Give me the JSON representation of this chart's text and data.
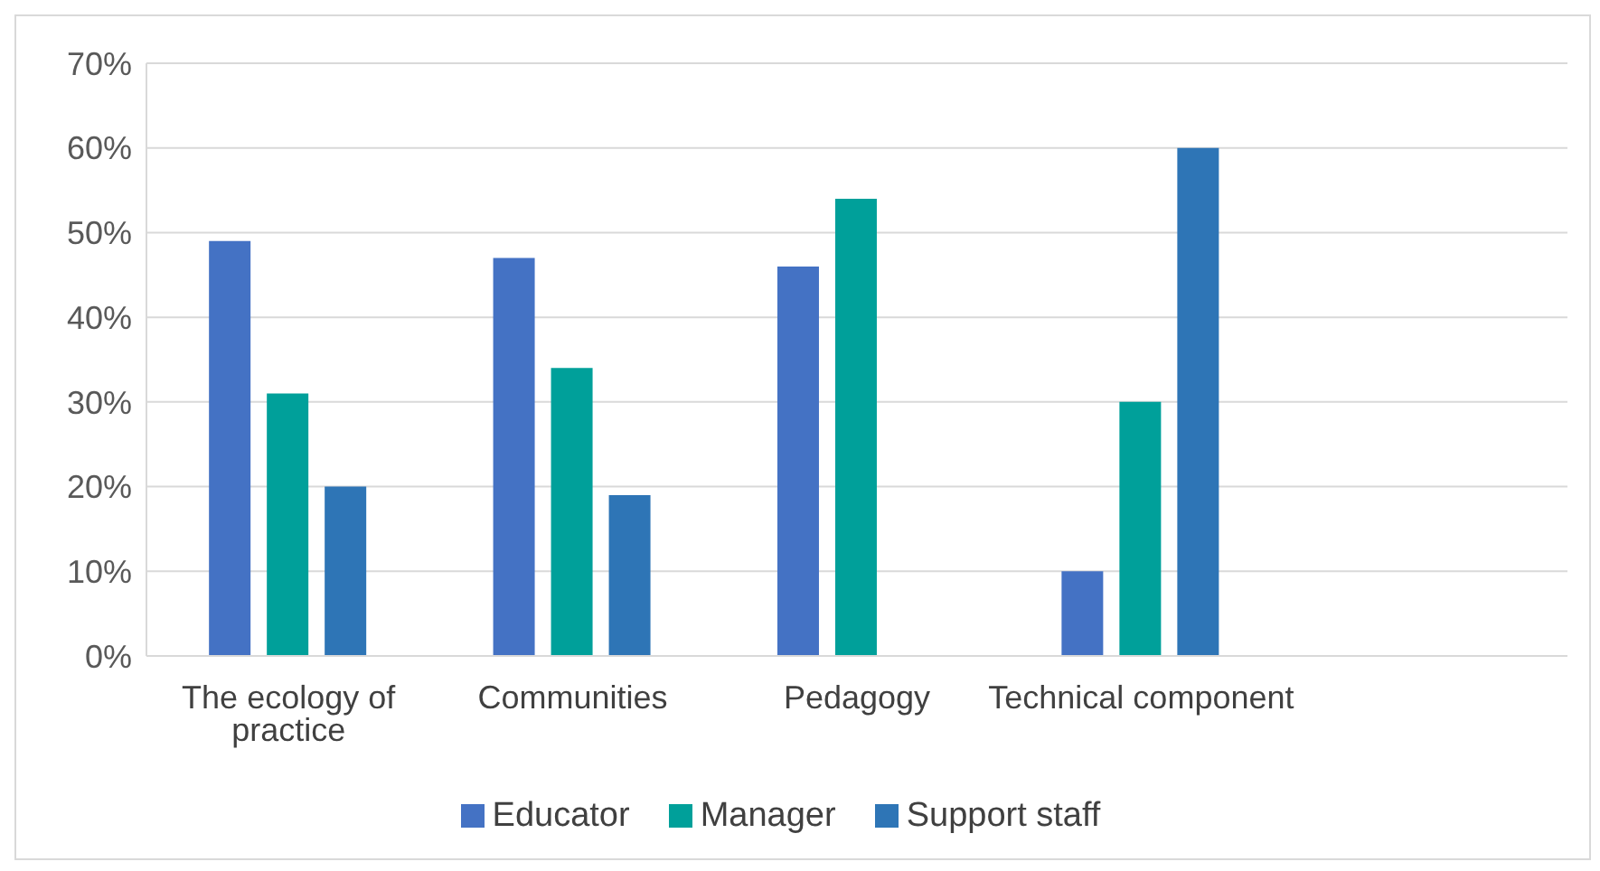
{
  "chart_data": {
    "type": "bar",
    "categories": [
      "The ecology of practice",
      "Communities",
      "Pedagogy",
      "Technical component",
      null
    ],
    "series": [
      {
        "name": "Educator",
        "color": "#4472c4",
        "values": [
          49,
          47,
          46,
          10,
          null
        ]
      },
      {
        "name": "Manager",
        "color": "#00a09a",
        "values": [
          31,
          34,
          54,
          30,
          null
        ]
      },
      {
        "name": "Support staff",
        "color": "#2e75b6",
        "values": [
          20,
          19,
          null,
          60,
          null
        ]
      }
    ],
    "ylim": [
      0,
      70
    ],
    "yticks": [
      {
        "value": 0,
        "label": "0%"
      },
      {
        "value": 10,
        "label": "10%"
      },
      {
        "value": 20,
        "label": "20%"
      },
      {
        "value": 30,
        "label": "30%"
      },
      {
        "value": 40,
        "label": "40%"
      },
      {
        "value": 50,
        "label": "50%"
      },
      {
        "value": 60,
        "label": "60%"
      },
      {
        "value": 70,
        "label": "70%"
      }
    ],
    "grid": "y",
    "legend": "bottom"
  }
}
